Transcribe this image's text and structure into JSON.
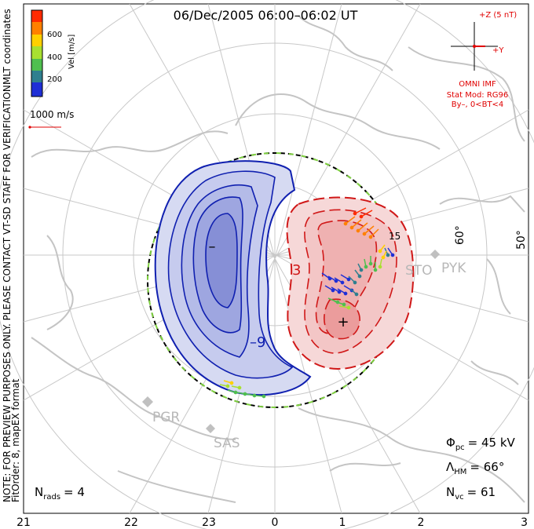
{
  "title": "06/Dec/2005 06:00–06:02 UT",
  "coords_label": "MLT coordinates",
  "notice_line1": "NOTE: FOR PREVIEW PURPOSES ONLY. PLEASE CONTACT VT-SD STAFF FOR VERIFICATION.",
  "notice_line2": "FitOrder: 8, mapEX format",
  "colorbar": {
    "label": "Vel [m/s]",
    "ticks": [
      "600",
      "400",
      "200"
    ],
    "colors": [
      "#1f2fd6",
      "#2f7f8f",
      "#4fbf4f",
      "#a8e030",
      "#ffd000",
      "#ff8000",
      "#ff2a00"
    ]
  },
  "velocity_scale": "1000 m/s",
  "imf": {
    "z_label": "+Z (5 nT)",
    "y_label": "+Y",
    "source": "OMNI IMF",
    "model_line1": "Stat Mod: RG96",
    "model_line2": "By–, 0<BT<4"
  },
  "stations": [
    "PYK",
    "STO",
    "PGR",
    "SAS"
  ],
  "latitudes": [
    "60°",
    "50°"
  ],
  "mlt_ticks": [
    "21",
    "22",
    "23",
    "0",
    "1",
    "2",
    "3"
  ],
  "contour_labels": {
    "neg": "–9",
    "pos": "3",
    "pos2": "15"
  },
  "stats": {
    "phi_pc_symbol": "Φ",
    "phi_pc_sub": "pc",
    "phi_pc_value": "= 45 kV",
    "lambda_symbol": "Λ",
    "lambda_sub": "HM",
    "lambda_value": "= 66°",
    "nvc_symbol": "N",
    "nvc_sub": "vc",
    "nvc_value": "= 61",
    "nrads_symbol": "N",
    "nrads_sub": "rads",
    "nrads_value": "= 4"
  },
  "markers": {
    "min": "–",
    "max": "+"
  },
  "accent_colors": {
    "negative": "#1020b0",
    "positive": "#d01818",
    "map": "#c8c8c8"
  }
}
